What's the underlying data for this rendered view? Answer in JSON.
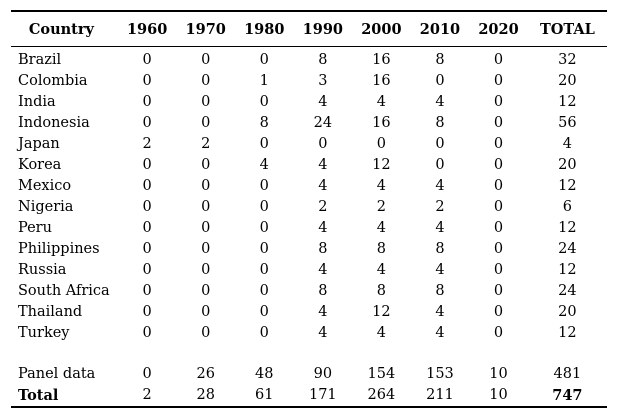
{
  "table": {
    "headers": [
      "Country",
      "1960",
      "1970",
      "1980",
      "1990",
      "2000",
      "2010",
      "2020",
      "TOTAL"
    ],
    "rows": [
      {
        "country": "Brazil",
        "values": [
          "0",
          "0",
          "0",
          "8",
          "16",
          "8",
          "0",
          "32"
        ]
      },
      {
        "country": "Colombia",
        "values": [
          "0",
          "0",
          "1",
          "3",
          "16",
          "0",
          "0",
          "20"
        ]
      },
      {
        "country": "India",
        "values": [
          "0",
          "0",
          "0",
          "4",
          "4",
          "4",
          "0",
          "12"
        ]
      },
      {
        "country": "Indonesia",
        "values": [
          "0",
          "0",
          "8",
          "24",
          "16",
          "8",
          "0",
          "56"
        ]
      },
      {
        "country": "Japan",
        "values": [
          "2",
          "2",
          "0",
          "0",
          "0",
          "0",
          "0",
          "4"
        ]
      },
      {
        "country": "Korea",
        "values": [
          "0",
          "0",
          "4",
          "4",
          "12",
          "0",
          "0",
          "20"
        ]
      },
      {
        "country": "Mexico",
        "values": [
          "0",
          "0",
          "0",
          "4",
          "4",
          "4",
          "0",
          "12"
        ]
      },
      {
        "country": "Nigeria",
        "values": [
          "0",
          "0",
          "0",
          "2",
          "2",
          "2",
          "0",
          "6"
        ]
      },
      {
        "country": "Peru",
        "values": [
          "0",
          "0",
          "0",
          "4",
          "4",
          "4",
          "0",
          "12"
        ]
      },
      {
        "country": "Philippines",
        "values": [
          "0",
          "0",
          "0",
          "8",
          "8",
          "8",
          "0",
          "24"
        ]
      },
      {
        "country": "Russia",
        "values": [
          "0",
          "0",
          "0",
          "4",
          "4",
          "4",
          "0",
          "12"
        ]
      },
      {
        "country": "South Africa",
        "values": [
          "0",
          "0",
          "0",
          "8",
          "8",
          "8",
          "0",
          "24"
        ]
      },
      {
        "country": "Thailand",
        "values": [
          "0",
          "0",
          "0",
          "4",
          "12",
          "4",
          "0",
          "20"
        ]
      },
      {
        "country": "Turkey",
        "values": [
          "0",
          "0",
          "0",
          "4",
          "4",
          "4",
          "0",
          "12"
        ]
      }
    ],
    "panel_row": {
      "label": "Panel data",
      "values": [
        "0",
        "26",
        "48",
        "90",
        "154",
        "153",
        "10",
        "481"
      ]
    },
    "total_row": {
      "label": "Total",
      "values": [
        "2",
        "28",
        "61",
        "171",
        "264",
        "211",
        "10",
        "747"
      ]
    }
  }
}
